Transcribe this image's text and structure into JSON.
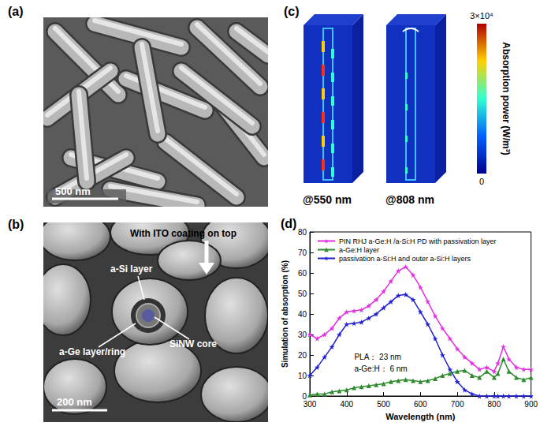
{
  "panels": {
    "a": {
      "label": "(a)",
      "scale_bar": "500 nm"
    },
    "b": {
      "label": "(b)",
      "scale_bar": "200 nm",
      "annotations": [
        "With ITO coating on top",
        "a-Si layer",
        "a-Ge layer/ring",
        "SiNW core"
      ]
    },
    "c": {
      "label": "(c)",
      "images": [
        "@550 nm",
        "@808 nm"
      ],
      "colorbar": {
        "title": "Absorption power (W/m³)",
        "range": [
          0,
          30000
        ],
        "ticks": [
          0,
          {
            "value": 30000,
            "label": "3×10⁴"
          }
        ]
      }
    }
  },
  "chart_data": {
    "type": "line",
    "title": "(d)",
    "x_label": "Wavelength (nm)",
    "y_label": "Simulation of absorption (%)",
    "x": [
      300,
      320,
      340,
      360,
      380,
      400,
      420,
      440,
      460,
      480,
      500,
      520,
      540,
      560,
      580,
      600,
      620,
      640,
      660,
      680,
      700,
      720,
      740,
      760,
      780,
      800,
      810,
      825,
      840,
      860,
      880,
      900
    ],
    "series": [
      {
        "name": "PIN RHJ a-Ge:H /a-Si:H PD with passivation layer",
        "color": "#e030e0",
        "marker": "star",
        "values": [
          30,
          28,
          30,
          33,
          38,
          41,
          41.5,
          42,
          44,
          47,
          51,
          56,
          61,
          63,
          59,
          53,
          46,
          39,
          33,
          28,
          23,
          19,
          16,
          13,
          14,
          12,
          16,
          24,
          18,
          14,
          13,
          13
        ]
      },
      {
        "name": "a-Ge:H layer",
        "color": "#2e8b2e",
        "marker": "triangle",
        "values": [
          0.5,
          1,
          1,
          2,
          2.5,
          3,
          4,
          4.5,
          5,
          5.5,
          6,
          7,
          7.5,
          8,
          7.5,
          7,
          7.5,
          8.5,
          10,
          11,
          12,
          12.5,
          10,
          9,
          12,
          9,
          11,
          18,
          12,
          9,
          8,
          9
        ]
      },
      {
        "name": "passivation a-Si:H and outer a-Si:H layers",
        "color": "#2020d0",
        "marker": "star",
        "values": [
          10,
          14,
          19,
          24,
          30,
          35,
          35.5,
          36,
          38,
          40,
          43,
          46,
          49,
          49.5,
          47,
          41,
          35,
          28,
          20,
          13,
          7,
          3,
          1,
          0,
          0,
          0,
          0,
          0,
          0,
          0,
          0,
          0
        ]
      }
    ],
    "annotations": [
      "PLA： 23 nm",
      "a-Ge:H： 6 nm"
    ],
    "xlim": [
      300,
      900
    ],
    "xticks": [
      300,
      400,
      500,
      600,
      700,
      800,
      900
    ],
    "ylim": [
      0,
      80
    ],
    "yticks": [
      0,
      10,
      20,
      30,
      40,
      50,
      60,
      70,
      80
    ],
    "grid": false,
    "legend": "top-left"
  }
}
